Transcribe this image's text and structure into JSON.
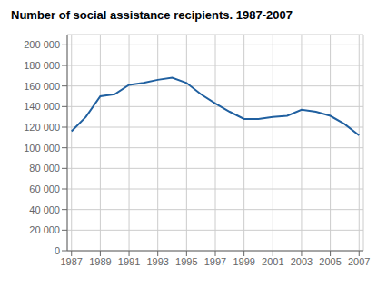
{
  "chart_data": {
    "type": "line",
    "title": "Number of social assistance recipients. 1987-2007",
    "x": [
      1987,
      1988,
      1989,
      1990,
      1991,
      1992,
      1993,
      1994,
      1995,
      1996,
      1997,
      1998,
      1999,
      2000,
      2001,
      2002,
      2003,
      2004,
      2005,
      2006,
      2007
    ],
    "values": [
      116000,
      130000,
      150000,
      152000,
      161000,
      163000,
      166000,
      168000,
      163000,
      152000,
      143000,
      135000,
      128000,
      128000,
      130000,
      131000,
      137000,
      135000,
      131000,
      123000,
      112000
    ],
    "color": "#2060a0",
    "xlim": [
      1986.7,
      2007.3
    ],
    "xticks": [
      1987,
      1989,
      1991,
      1993,
      1995,
      1997,
      1999,
      2001,
      2003,
      2005,
      2007
    ],
    "ylim": [
      0,
      210000
    ],
    "yticks": [
      0,
      {
        "value": 20000,
        "label": "20 000"
      },
      {
        "value": 40000,
        "label": "40 000"
      },
      {
        "value": 60000,
        "label": "60 000"
      },
      {
        "value": 80000,
        "label": "80 000"
      },
      {
        "value": 100000,
        "label": "100 000"
      },
      {
        "value": 120000,
        "label": "120 000"
      },
      {
        "value": 140000,
        "label": "140 000"
      },
      {
        "value": 160000,
        "label": "160 000"
      },
      {
        "value": 180000,
        "label": "180 000"
      },
      {
        "value": 200000,
        "label": "200 000"
      }
    ],
    "grid": true
  }
}
